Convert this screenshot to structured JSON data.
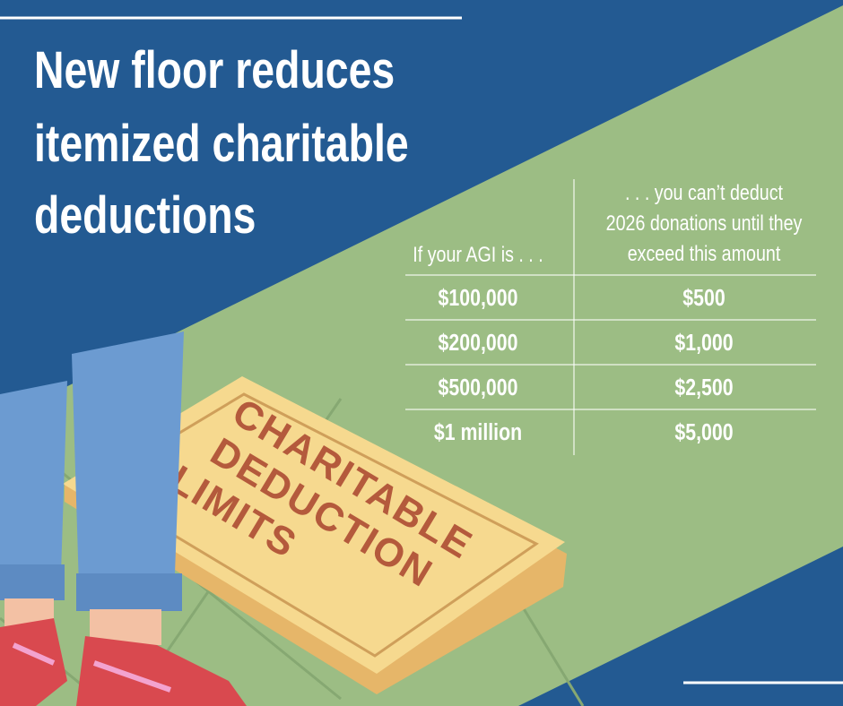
{
  "title": [
    "New floor reduces",
    "itemized charitable",
    "deductions"
  ],
  "table": {
    "columns": [
      [
        "If your AGI is . . ."
      ],
      [
        ". . . you can’t deduct",
        "2026 donations until they",
        "exceed this amount"
      ]
    ],
    "rows": [
      [
        "$100,000",
        "$500"
      ],
      [
        "$200,000",
        "$1,000"
      ],
      [
        "$500,000",
        "$2,500"
      ],
      [
        "$1 million",
        "$5,000"
      ]
    ]
  },
  "mat": [
    "CHARITABLE",
    "DEDUCTION",
    "LIMITS"
  ]
}
